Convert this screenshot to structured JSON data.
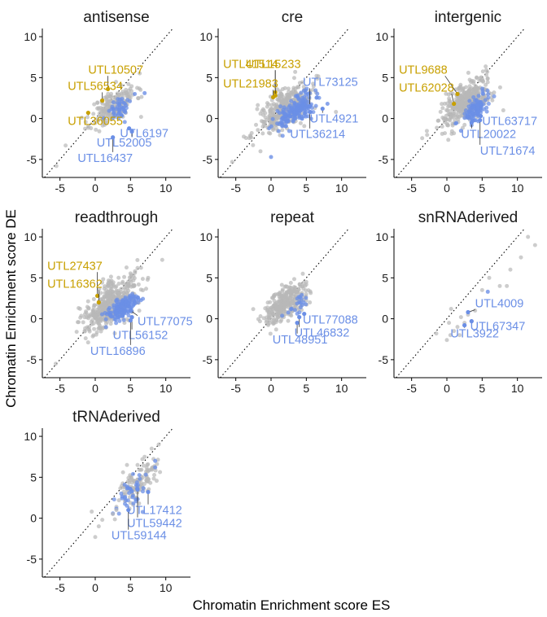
{
  "chart_data": {
    "type": "scatter",
    "xlabel": "Chromatin Enrichment score ES",
    "ylabel": "Chromatin Enrichment score DE",
    "xlim": [
      -7.5,
      13.5
    ],
    "ylim": [
      -7.2,
      11
    ],
    "xticks": [
      -5,
      0,
      5,
      10
    ],
    "yticks": [
      -5,
      0,
      5,
      10
    ],
    "diagonal": "y = x (dotted)",
    "colors": {
      "gray": "#b8b8b8",
      "blue": "#6b8fe6",
      "gold": "#c8a000"
    },
    "facets": [
      {
        "title": "antisense",
        "clusters": [
          {
            "color": "gray",
            "cx": 2.6,
            "cy": 1.6,
            "sx": 1.6,
            "sy": 1.3,
            "n": 200,
            "seed": 11
          },
          {
            "color": "blue",
            "cx": 3.6,
            "cy": 1.3,
            "sx": 0.9,
            "sy": 0.9,
            "n": 45,
            "seed": 12
          }
        ],
        "extras": [
          [
            -5.5,
            -5.8,
            "gray"
          ],
          [
            -4.2,
            -3.3,
            "gray"
          ],
          [
            6.5,
            0.2,
            "gray"
          ],
          [
            5.6,
            3.0,
            "blue"
          ],
          [
            7.0,
            3.1,
            "blue"
          ],
          [
            5.2,
            -1.5,
            "blue"
          ]
        ],
        "labels": [
          {
            "text": "UTL10507",
            "color": "gold",
            "pt": [
              1.8,
              3.6
            ],
            "lx": -1.0,
            "ly": 5.5
          },
          {
            "text": "UTL56534",
            "color": "gold",
            "pt": [
              1.0,
              2.2
            ],
            "lx": -3.9,
            "ly": 3.5
          },
          {
            "text": "UTL36055",
            "color": "gold",
            "pt": [
              -1.0,
              0.7
            ],
            "lx": -3.9,
            "ly": -0.8
          },
          {
            "text": "UTL6197",
            "color": "blue",
            "pt": [
              4.8,
              -1.2
            ],
            "lx": 3.5,
            "ly": -2.3
          },
          {
            "text": "UTL52005",
            "color": "blue",
            "pt": [
              5.2,
              -1.6
            ],
            "lx": 0.2,
            "ly": -3.4
          },
          {
            "text": "UTL16437",
            "color": "blue",
            "pt": [
              2.5,
              -2.3
            ],
            "lx": -2.5,
            "ly": -5.3
          }
        ]
      },
      {
        "title": "cre",
        "clusters": [
          {
            "color": "gray",
            "cx": 2.0,
            "cy": 1.2,
            "sx": 1.9,
            "sy": 1.5,
            "n": 350,
            "seed": 21
          },
          {
            "color": "blue",
            "cx": 3.6,
            "cy": 1.0,
            "sx": 1.3,
            "sy": 1.0,
            "n": 180,
            "seed": 22
          }
        ],
        "extras": [
          [
            -5.5,
            -5.3,
            "gray"
          ],
          [
            -1.5,
            -4.0,
            "gray"
          ],
          [
            0.0,
            -4.7,
            "blue"
          ],
          [
            8.0,
            1.8,
            "blue"
          ],
          [
            9.2,
            0.8,
            "gray"
          ]
        ],
        "labels": [
          {
            "text": "UTL41514",
            "color": "gold",
            "pt": [
              0.6,
              3.2
            ],
            "lx": -6.8,
            "ly": 6.2
          },
          {
            "text": "UTL15233",
            "color": "gold",
            "pt": [
              0.6,
              2.8
            ],
            "lx": -3.6,
            "ly": 6.2
          },
          {
            "text": "UTL21983",
            "color": "gold",
            "pt": [
              0.3,
              2.6
            ],
            "lx": -6.8,
            "ly": 3.8
          },
          {
            "text": "UTL73125",
            "color": "blue",
            "pt": [
              5.5,
              1.5
            ],
            "lx": 4.5,
            "ly": 4.0
          },
          {
            "text": "UTL4921",
            "color": "blue",
            "pt": [
              7.3,
              1.2
            ],
            "lx": 5.5,
            "ly": -0.5
          },
          {
            "text": "UTL36214",
            "color": "blue",
            "pt": [
              5.5,
              0.8
            ],
            "lx": 2.7,
            "ly": -2.4
          }
        ]
      },
      {
        "title": "intergenic",
        "clusters": [
          {
            "color": "gray",
            "cx": 2.6,
            "cy": 2.0,
            "sx": 1.8,
            "sy": 1.5,
            "n": 350,
            "seed": 31
          },
          {
            "color": "blue",
            "cx": 4.0,
            "cy": 1.2,
            "sx": 1.0,
            "sy": 1.0,
            "n": 100,
            "seed": 32
          }
        ],
        "extras": [
          [
            -3.5,
            -2.4,
            "gray"
          ],
          [
            -2.8,
            -2.0,
            "gray"
          ],
          [
            1.0,
            -1.8,
            "gray"
          ],
          [
            2.0,
            -1.5,
            "blue"
          ],
          [
            8.0,
            1.0,
            "gray"
          ]
        ],
        "labels": [
          {
            "text": "UTL9688",
            "color": "gold",
            "pt": [
              1.5,
              3.0
            ],
            "lx": -6.8,
            "ly": 5.5
          },
          {
            "text": "UTL62028",
            "color": "gold",
            "pt": [
              1.0,
              1.8
            ],
            "lx": -6.8,
            "ly": 3.3
          },
          {
            "text": "UTL63717",
            "color": "blue",
            "pt": [
              4.8,
              0.3
            ],
            "lx": 5.0,
            "ly": -0.8
          },
          {
            "text": "UTL20022",
            "color": "blue",
            "pt": [
              3.5,
              -0.5
            ],
            "lx": 2.0,
            "ly": -2.4
          },
          {
            "text": "UTL71674",
            "color": "blue",
            "pt": [
              4.7,
              -0.2
            ],
            "lx": 4.7,
            "ly": -4.4
          }
        ]
      },
      {
        "title": "readthrough",
        "clusters": [
          {
            "color": "gray",
            "cx": 2.2,
            "cy": 1.8,
            "sx": 2.0,
            "sy": 1.8,
            "n": 420,
            "seed": 41
          },
          {
            "color": "blue",
            "cx": 3.8,
            "cy": 1.3,
            "sx": 1.2,
            "sy": 0.9,
            "n": 140,
            "seed": 42
          }
        ],
        "extras": [
          [
            -5.6,
            -5.5,
            "gray"
          ],
          [
            -1.5,
            -1.5,
            "gray"
          ],
          [
            9.5,
            7.2,
            "gray"
          ],
          [
            7.5,
            5.0,
            "gray"
          ]
        ],
        "labels": [
          {
            "text": "UTL27437",
            "color": "gold",
            "pt": [
              0.3,
              2.8
            ],
            "lx": -6.8,
            "ly": 6.0
          },
          {
            "text": "UTL16362",
            "color": "gold",
            "pt": [
              0.5,
              2.0
            ],
            "lx": -6.8,
            "ly": 3.8
          },
          {
            "text": "UTL77075",
            "color": "blue",
            "pt": [
              5.0,
              1.0
            ],
            "lx": 6.0,
            "ly": -0.8
          },
          {
            "text": "UTL56152",
            "color": "blue",
            "pt": [
              5.2,
              0.2
            ],
            "lx": 2.5,
            "ly": -2.5
          },
          {
            "text": "UTL16896",
            "color": "blue",
            "pt": [
              5.0,
              -0.2
            ],
            "lx": -0.7,
            "ly": -4.4
          }
        ]
      },
      {
        "title": "repeat",
        "clusters": [
          {
            "color": "gray",
            "cx": 2.0,
            "cy": 1.8,
            "sx": 1.5,
            "sy": 1.3,
            "n": 300,
            "seed": 51
          },
          {
            "color": "blue",
            "cx": 3.6,
            "cy": 1.6,
            "sx": 0.8,
            "sy": 0.7,
            "n": 20,
            "seed": 52
          }
        ],
        "extras": [
          [
            4.5,
            5.5,
            "gray"
          ],
          [
            5.0,
            4.5,
            "gray"
          ],
          [
            5.5,
            2.0,
            "gray"
          ]
        ],
        "labels": [
          {
            "text": "UTL77088",
            "color": "blue",
            "pt": [
              4.7,
              0.6
            ],
            "lx": 4.5,
            "ly": -0.6
          },
          {
            "text": "UTL46832",
            "color": "blue",
            "pt": [
              4.0,
              0.2
            ],
            "lx": 3.3,
            "ly": -2.2
          },
          {
            "text": "UTL48951",
            "color": "blue",
            "pt": [
              3.7,
              -0.5
            ],
            "lx": 0.2,
            "ly": -3.0
          }
        ]
      },
      {
        "title": "snRNAderived",
        "clusters": [],
        "extras": [
          [
            -1.5,
            -1.8,
            "gray"
          ],
          [
            0.0,
            -2.6,
            "gray"
          ],
          [
            0.5,
            -2.0,
            "gray"
          ],
          [
            1.0,
            -1.5,
            "gray"
          ],
          [
            1.5,
            -1.0,
            "gray"
          ],
          [
            0.3,
            -0.5,
            "gray"
          ],
          [
            1.8,
            -2.0,
            "gray"
          ],
          [
            0.6,
            1.2,
            "gray"
          ],
          [
            2.0,
            0.2,
            "gray"
          ],
          [
            2.5,
            -0.5,
            "gray"
          ],
          [
            3.0,
            0.5,
            "gray"
          ],
          [
            4.0,
            1.0,
            "gray"
          ],
          [
            5.0,
            3.5,
            "gray"
          ],
          [
            6.0,
            5.0,
            "gray"
          ],
          [
            7.5,
            4.0,
            "gray"
          ],
          [
            8.5,
            4.0,
            "gray"
          ],
          [
            9.0,
            6.0,
            "gray"
          ],
          [
            10.5,
            7.5,
            "gray"
          ],
          [
            11.5,
            10.0,
            "gray"
          ],
          [
            12.5,
            9.0,
            "gray"
          ],
          [
            3.0,
            0.8,
            "blue"
          ],
          [
            2.5,
            -0.8,
            "blue"
          ],
          [
            3.5,
            -0.3,
            "blue"
          ],
          [
            5.8,
            3.3,
            "blue"
          ]
        ],
        "labels": [
          {
            "text": "UTL4009",
            "color": "blue",
            "pt": [
              3.0,
              0.8
            ],
            "lx": 4.0,
            "ly": 1.4
          },
          {
            "text": "UTL67347",
            "color": "blue",
            "pt": [
              3.5,
              -0.3
            ],
            "lx": 3.3,
            "ly": -1.4
          },
          {
            "text": "UTL3922",
            "color": "blue",
            "pt": [
              2.5,
              -0.8
            ],
            "lx": 0.5,
            "ly": -2.3
          }
        ]
      },
      {
        "title": "tRNAderived",
        "clusters": [
          {
            "color": "gray",
            "cx": 6.2,
            "cy": 4.3,
            "sx": 1.6,
            "sy": 1.5,
            "n": 110,
            "seed": 71
          },
          {
            "color": "blue",
            "cx": 5.0,
            "cy": 2.8,
            "sx": 1.2,
            "sy": 1.3,
            "n": 40,
            "seed": 72
          }
        ],
        "extras": [
          [
            0.0,
            -2.3,
            "gray"
          ],
          [
            0.5,
            -1.0,
            "gray"
          ],
          [
            -0.5,
            0.8,
            "gray"
          ],
          [
            1.0,
            -0.2,
            "gray"
          ],
          [
            2.5,
            0.5,
            "gray"
          ],
          [
            3.0,
            1.0,
            "gray"
          ],
          [
            4.5,
            6.5,
            "gray"
          ],
          [
            6.0,
            6.5,
            "gray"
          ],
          [
            7.0,
            7.5,
            "gray"
          ],
          [
            8.0,
            8.5,
            "gray"
          ],
          [
            9.0,
            9.0,
            "gray"
          ],
          [
            8.5,
            6.2,
            "blue"
          ],
          [
            8.5,
            7.0,
            "blue"
          ]
        ],
        "labels": [
          {
            "text": "UTL17412",
            "color": "blue",
            "pt": [
              7.5,
              3.2
            ],
            "lx": 4.5,
            "ly": 0.5
          },
          {
            "text": "UTL59442",
            "color": "blue",
            "pt": [
              6.0,
              3.5
            ],
            "lx": 4.5,
            "ly": -1.1
          },
          {
            "text": "UTL59144",
            "color": "blue",
            "pt": [
              4.7,
              1.0
            ],
            "lx": 2.3,
            "ly": -2.6
          }
        ]
      }
    ]
  }
}
